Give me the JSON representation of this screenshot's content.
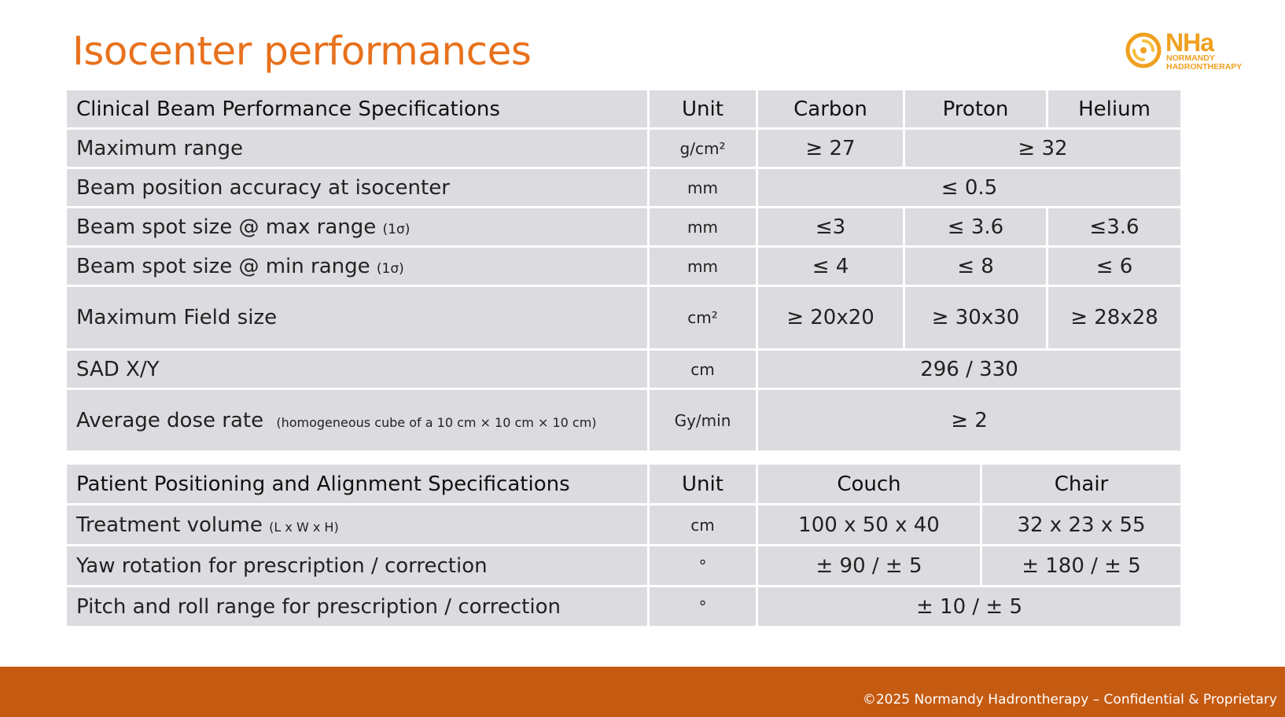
{
  "title": "Isocenter performances",
  "logo": {
    "main": "NHa",
    "line1": "NORMANDY",
    "line2": "HADRONTHERAPY"
  },
  "table1": {
    "header": [
      "Clinical Beam Performance Specifications",
      "Unit",
      "Carbon",
      "Proton",
      "Helium"
    ],
    "rows": [
      {
        "label": "Maximum range",
        "unit": "g/cm²",
        "values": [
          "≥ 27",
          "≥ 32"
        ]
      },
      {
        "label": "Beam position accuracy at isocenter",
        "unit": "mm",
        "values": [
          "≤ 0.5"
        ]
      },
      {
        "label": "Beam spot size @ max range",
        "note": "(1σ)",
        "unit": "mm",
        "values": [
          "≤3",
          "≤ 3.6",
          "≤3.6"
        ]
      },
      {
        "label": "Beam spot size @ min range",
        "note": "(1σ)",
        "unit": "mm",
        "values": [
          "≤ 4",
          "≤ 8",
          "≤ 6"
        ]
      },
      {
        "label": "Maximum Field size",
        "unit": "cm²",
        "values": [
          "≥ 20x20",
          "≥ 30x30",
          "≥ 28x28"
        ]
      },
      {
        "label": "SAD X/Y",
        "unit": "cm",
        "values": [
          "296  / 330"
        ]
      },
      {
        "label": "Average dose rate",
        "note": "(homogeneous  cube of a 10 cm × 10 cm × 10 cm)",
        "unit": "Gy/min",
        "values": [
          "≥ 2"
        ]
      }
    ]
  },
  "table2": {
    "header": [
      "Patient Positioning and Alignment Specifications",
      "Unit",
      "Couch",
      "Chair"
    ],
    "rows": [
      {
        "label": "Treatment volume",
        "note": "(L x W x H)",
        "unit": "cm",
        "values": [
          "100 x 50 x 40",
          "32 x 23 x 55"
        ]
      },
      {
        "label": "Yaw rotation for prescription / correction",
        "unit": "°",
        "values": [
          "± 90  /  ± 5",
          "± 180 /  ± 5"
        ]
      },
      {
        "label": "Pitch and roll range for prescription / correction",
        "unit": "°",
        "values": [
          "± 10  /  ± 5"
        ]
      }
    ]
  },
  "footer": "©2025  Normandy Hadrontherapy – Confidential & Proprietary",
  "colors": {
    "title": "#e8711c",
    "footer_bar": "#c55a11",
    "cell_bg": "#dcdbdf",
    "logo": "#f0a020"
  }
}
